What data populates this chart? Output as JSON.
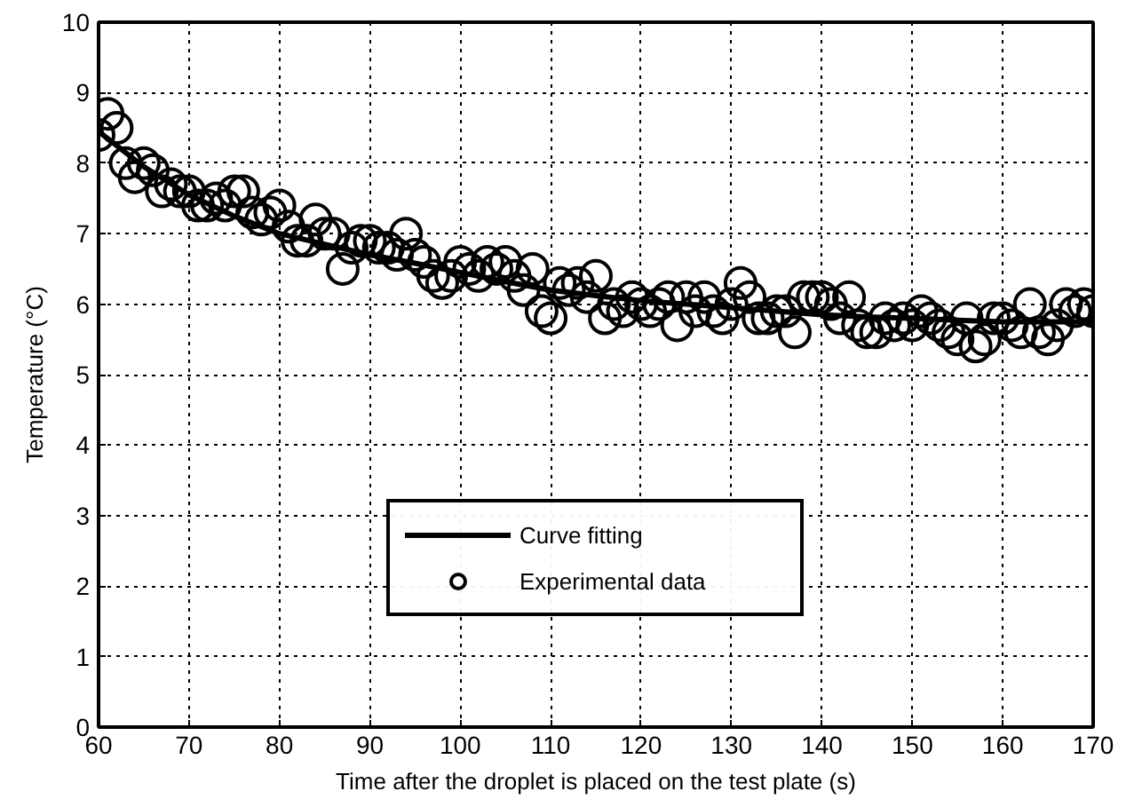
{
  "chart_data": {
    "type": "scatter",
    "xlabel": "Time after the droplet is placed on the test plate (s)",
    "ylabel": "Temperature (°C)",
    "xlim": [
      60,
      170
    ],
    "xticks": [
      60,
      70,
      80,
      90,
      100,
      110,
      120,
      130,
      140,
      150,
      160,
      170
    ],
    "ylim": [
      0,
      10
    ],
    "yticks": [
      0,
      1,
      2,
      3,
      4,
      5,
      6,
      7,
      8,
      9,
      10
    ],
    "grid": true,
    "legend": "bottom",
    "series": [
      {
        "name": "Curve fitting",
        "type": "line",
        "color": "#000000",
        "line_style": "solid",
        "marker": "none",
        "x": [
          60,
          65,
          70,
          75,
          80,
          85,
          90,
          95,
          100,
          105,
          110,
          115,
          120,
          125,
          130,
          135,
          140,
          145,
          150,
          155,
          160,
          165,
          170
        ],
        "values": [
          8.45,
          7.95,
          7.55,
          7.25,
          7.0,
          6.85,
          6.7,
          6.58,
          6.45,
          6.32,
          6.2,
          6.12,
          6.05,
          6.0,
          5.95,
          5.9,
          5.85,
          5.82,
          5.8,
          5.77,
          5.75,
          5.75,
          5.75
        ]
      },
      {
        "name": "Experimental data",
        "color": "#000000",
        "marker": "circle",
        "x": [
          60,
          61,
          62,
          63,
          64,
          65,
          66,
          67,
          68,
          69,
          70,
          71,
          72,
          73,
          74,
          75,
          76,
          77,
          78,
          79,
          80,
          81,
          82,
          83,
          84,
          85,
          86,
          87,
          88,
          89,
          90,
          91,
          92,
          93,
          94,
          95,
          96,
          97,
          98,
          99,
          100,
          101,
          102,
          103,
          104,
          105,
          106,
          107,
          108,
          109,
          110,
          111,
          112,
          113,
          114,
          115,
          116,
          117,
          118,
          119,
          120,
          121,
          122,
          123,
          124,
          125,
          126,
          127,
          128,
          129,
          130,
          131,
          132,
          133,
          134,
          135,
          136,
          137,
          138,
          139,
          140,
          141,
          142,
          143,
          144,
          145,
          146,
          147,
          148,
          149,
          150,
          151,
          152,
          153,
          154,
          155,
          156,
          157,
          158,
          159,
          160,
          161,
          162,
          163,
          164,
          165,
          166,
          167,
          168,
          169,
          170
        ],
        "values": [
          8.4,
          8.7,
          8.5,
          8.0,
          7.8,
          8.0,
          7.9,
          7.6,
          7.7,
          7.6,
          7.6,
          7.4,
          7.4,
          7.5,
          7.4,
          7.6,
          7.6,
          7.3,
          7.2,
          7.3,
          7.4,
          7.1,
          6.9,
          6.9,
          7.2,
          7.0,
          7.0,
          6.5,
          6.8,
          6.9,
          6.9,
          6.8,
          6.8,
          6.7,
          7.0,
          6.7,
          6.6,
          6.4,
          6.3,
          6.4,
          6.6,
          6.5,
          6.4,
          6.6,
          6.5,
          6.6,
          6.4,
          6.2,
          6.5,
          5.9,
          5.8,
          6.3,
          6.2,
          6.3,
          6.1,
          6.4,
          5.8,
          6.0,
          5.9,
          6.1,
          6.0,
          5.9,
          6.0,
          6.1,
          5.7,
          6.1,
          5.9,
          6.1,
          5.9,
          5.8,
          6.0,
          6.3,
          6.1,
          5.8,
          5.8,
          5.9,
          5.9,
          5.6,
          6.1,
          6.1,
          6.1,
          6.0,
          5.8,
          6.1,
          5.7,
          5.6,
          5.6,
          5.8,
          5.7,
          5.8,
          5.7,
          5.9,
          5.8,
          5.7,
          5.6,
          5.5,
          5.8,
          5.4,
          5.5,
          5.8,
          5.8,
          5.7,
          5.6,
          6.0,
          5.6,
          5.5,
          5.7,
          6.0,
          5.9,
          6.0,
          5.9
        ]
      }
    ]
  }
}
